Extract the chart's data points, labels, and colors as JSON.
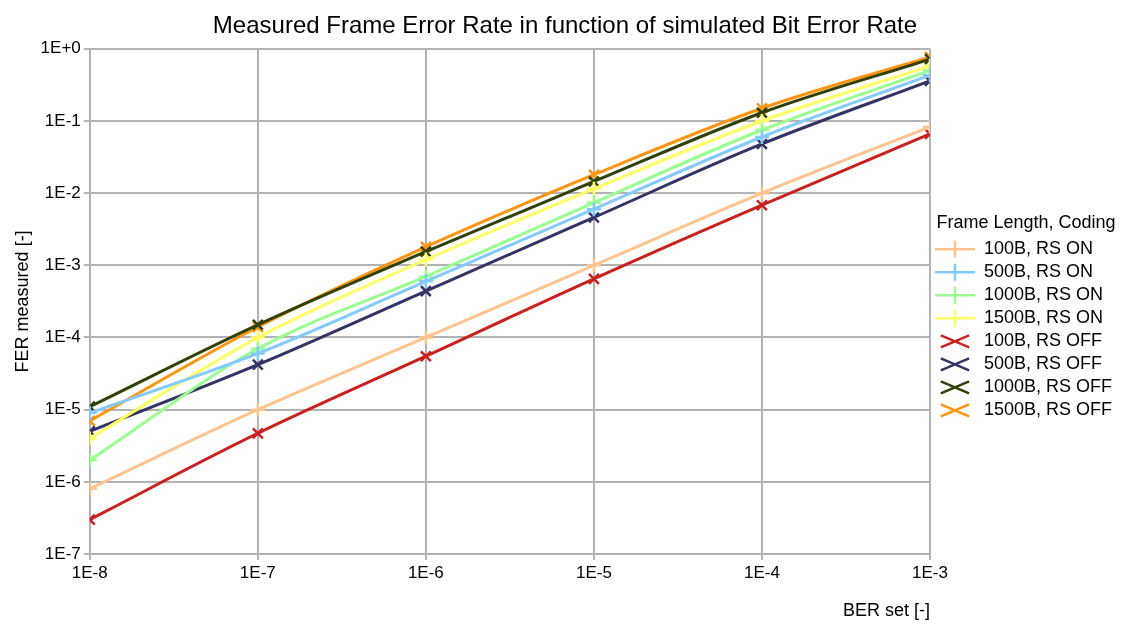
{
  "chart_data": {
    "type": "line",
    "title": "Measured Frame Error Rate in function of simulated Bit Error Rate",
    "xlabel": "BER set [-]",
    "ylabel": "FER measured [-]",
    "legend_title": "Frame Length, Coding",
    "legend": "right",
    "grid": true,
    "log": "xy",
    "line_style": "solid",
    "x": [
      1e-08,
      1e-07,
      1e-06,
      1e-05,
      0.0001,
      0.001
    ],
    "xlim": [
      1e-08,
      0.001
    ],
    "xticks": [
      {
        "value": 1e-08,
        "label": "1E-8"
      },
      {
        "value": 1e-07,
        "label": "1E-7"
      },
      {
        "value": 1e-06,
        "label": "1E-6"
      },
      {
        "value": 1e-05,
        "label": "1E-5"
      },
      {
        "value": 0.0001,
        "label": "1E-4"
      },
      {
        "value": 0.001,
        "label": "1E-3"
      }
    ],
    "ylim": [
      1e-07,
      1
    ],
    "yticks": [
      {
        "value": 1e-07,
        "label": "1E-7"
      },
      {
        "value": 1e-06,
        "label": "1E-6"
      },
      {
        "value": 1e-05,
        "label": "1E-5"
      },
      {
        "value": 0.0001,
        "label": "1E-4"
      },
      {
        "value": 0.001,
        "label": "1E-3"
      },
      {
        "value": 0.01,
        "label": "1E-2"
      },
      {
        "value": 0.1,
        "label": "1E-1"
      },
      {
        "value": 1,
        "label": "1E+0"
      }
    ],
    "series": [
      {
        "name": "100B, RS ON",
        "color": "#ffc48f",
        "marker": "plus",
        "values": [
          8e-07,
          1e-05,
          0.0001,
          0.001,
          0.01,
          0.083
        ]
      },
      {
        "name": "500B, RS ON",
        "color": "#83caff",
        "marker": "plus",
        "values": [
          9e-06,
          6e-05,
          0.0006,
          0.006,
          0.06,
          0.43
        ]
      },
      {
        "name": "1000B, RS ON",
        "color": "#99ff8f",
        "marker": "plus",
        "values": [
          2e-06,
          7e-05,
          0.0007,
          0.0074,
          0.075,
          0.5
        ]
      },
      {
        "name": "1500B, RS ON",
        "color": "#ffff66",
        "marker": "plus",
        "values": [
          4e-06,
          0.0001,
          0.0012,
          0.0115,
          0.1,
          0.58
        ]
      },
      {
        "name": "100B, RS OFF",
        "color": "#c9211e",
        "marker": "cross",
        "values": [
          3e-07,
          4.7e-06,
          5.5e-05,
          0.00065,
          0.0068,
          0.066
        ]
      },
      {
        "name": "500B, RS OFF",
        "color": "#333366",
        "marker": "cross",
        "values": [
          5e-06,
          4.2e-05,
          0.00044,
          0.0046,
          0.048,
          0.36
        ]
      },
      {
        "name": "1000B, RS OFF",
        "color": "#314004",
        "marker": "cross",
        "values": [
          1.1e-05,
          0.00015,
          0.00155,
          0.0145,
          0.13,
          0.72
        ]
      },
      {
        "name": "1500B, RS OFF",
        "color": "#ff950e",
        "marker": "cross",
        "values": [
          7e-06,
          0.00014,
          0.0018,
          0.018,
          0.15,
          0.77
        ]
      }
    ]
  }
}
